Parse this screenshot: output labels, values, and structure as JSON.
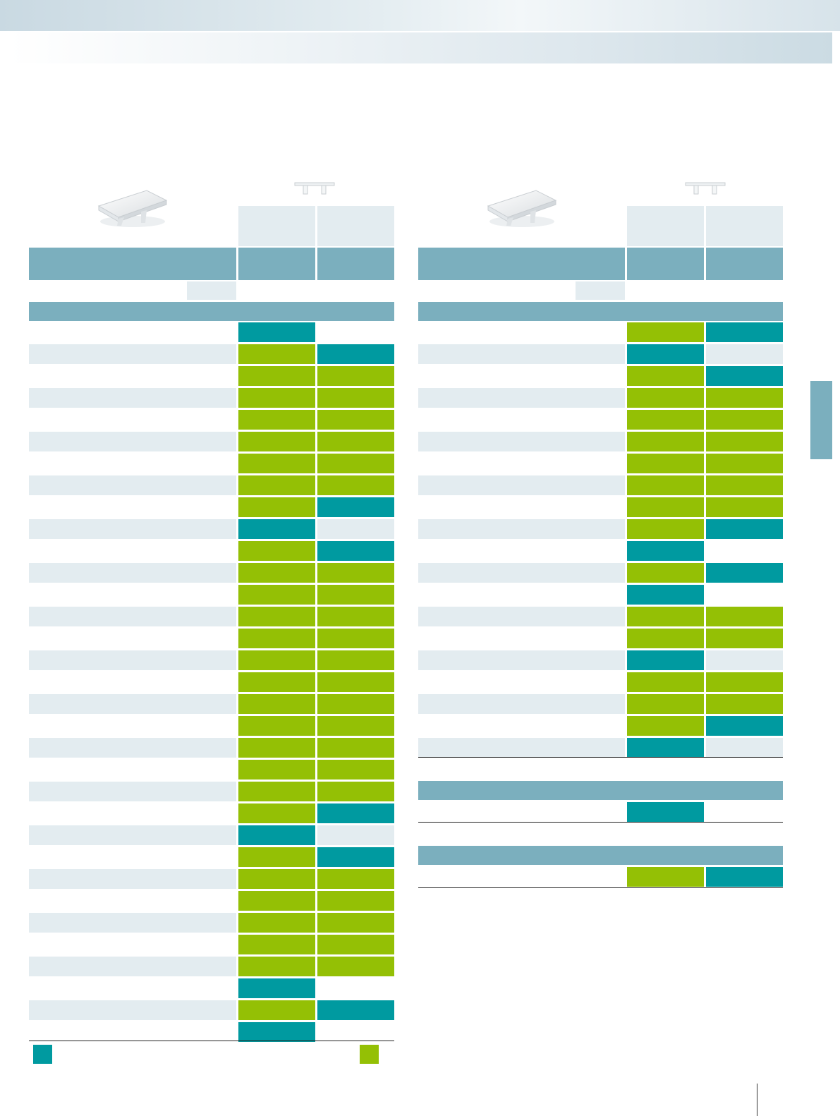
{
  "colors": {
    "teal": "#009aa0",
    "green": "#94c005",
    "header": "#7bafbe",
    "stripe": "#e3ecf0",
    "tab": "#7bafbe"
  },
  "icons": {
    "product": "end-cap-product-image",
    "connector": "connector-clip-icon"
  },
  "left_table": {
    "rows": [
      [
        "teal",
        ""
      ],
      [
        "green",
        "teal"
      ],
      [
        "green",
        "green"
      ],
      [
        "green",
        "green"
      ],
      [
        "green",
        "green"
      ],
      [
        "green",
        "green"
      ],
      [
        "green",
        "green"
      ],
      [
        "green",
        "green"
      ],
      [
        "green",
        "teal"
      ],
      [
        "teal",
        "light"
      ],
      [
        "green",
        "teal"
      ],
      [
        "green",
        "green"
      ],
      [
        "green",
        "green"
      ],
      [
        "green",
        "green"
      ],
      [
        "green",
        "green"
      ],
      [
        "green",
        "green"
      ],
      [
        "green",
        "green"
      ],
      [
        "green",
        "green"
      ],
      [
        "green",
        "green"
      ],
      [
        "green",
        "green"
      ],
      [
        "green",
        "green"
      ],
      [
        "green",
        "green"
      ],
      [
        "green",
        "teal"
      ],
      [
        "teal",
        "light"
      ],
      [
        "green",
        "teal"
      ],
      [
        "green",
        "green"
      ],
      [
        "green",
        "green"
      ],
      [
        "green",
        "green"
      ],
      [
        "green",
        "green"
      ],
      [
        "green",
        "green"
      ],
      [
        "teal",
        ""
      ],
      [
        "green",
        "teal"
      ],
      [
        "teal",
        ""
      ]
    ]
  },
  "right_table": {
    "rows": [
      [
        "green",
        "teal"
      ],
      [
        "teal",
        "light"
      ],
      [
        "green",
        "teal"
      ],
      [
        "green",
        "green"
      ],
      [
        "green",
        "green"
      ],
      [
        "green",
        "green"
      ],
      [
        "green",
        "green"
      ],
      [
        "green",
        "green"
      ],
      [
        "green",
        "green"
      ],
      [
        "green",
        "teal"
      ],
      [
        "teal",
        ""
      ],
      [
        "green",
        "teal"
      ],
      [
        "teal",
        ""
      ],
      [
        "green",
        "green"
      ],
      [
        "green",
        "green"
      ],
      [
        "teal",
        "light"
      ],
      [
        "green",
        "green"
      ],
      [
        "green",
        "green"
      ],
      [
        "green",
        "teal"
      ],
      [
        "teal",
        "light"
      ]
    ],
    "section2_row": [
      "teal",
      ""
    ],
    "section3_row": [
      "green",
      "teal"
    ]
  },
  "legend": {
    "left_color": "teal",
    "right_color": "green"
  }
}
